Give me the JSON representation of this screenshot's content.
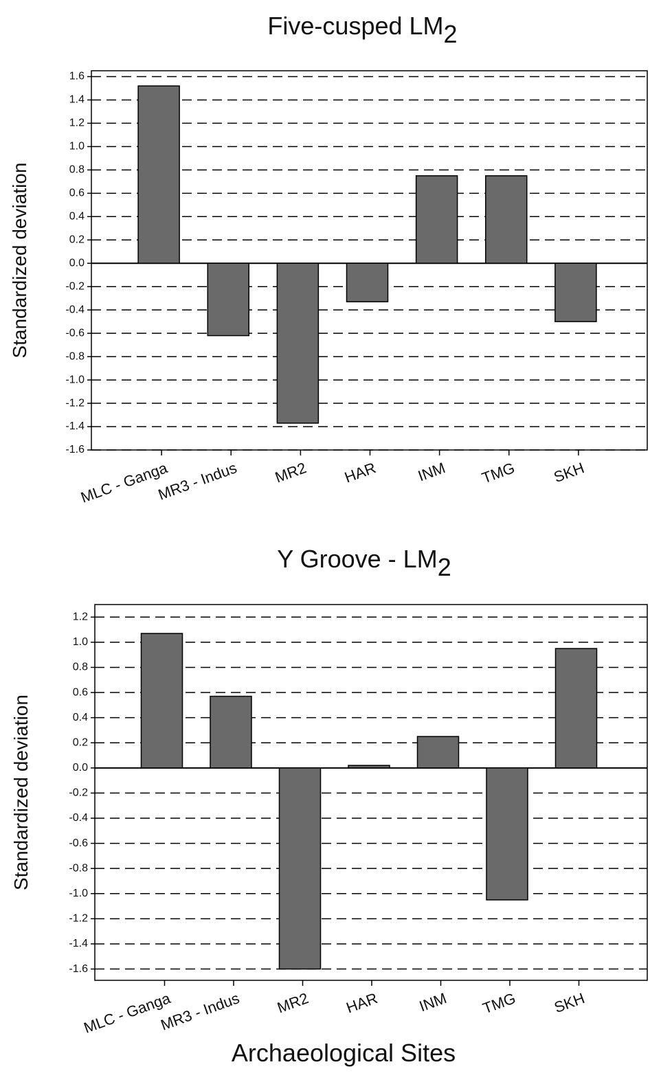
{
  "chart_data": [
    {
      "type": "bar",
      "title": "Five-cusped LM",
      "title_subscript": "2",
      "y_label": "Standardized deviation",
      "categories": [
        "MLC - Ganga",
        "MR3 - Indus",
        "MR2",
        "HAR",
        "INM",
        "TMG",
        "SKH"
      ],
      "values": [
        1.52,
        -0.62,
        -1.37,
        -0.33,
        0.75,
        0.75,
        -0.5
      ],
      "color": "#6a6a6a",
      "ylim": [
        -1.6,
        1.65
      ],
      "yticks": [
        -1.6,
        -1.4,
        -1.2,
        {
          "value": -1,
          "label": "-1.0"
        },
        -0.8,
        -0.6,
        -0.4,
        -0.2,
        {
          "value": 0,
          "label": "0.0"
        },
        0.2,
        0.4,
        0.6,
        0.8,
        {
          "value": 1,
          "label": "1.0"
        },
        1.2,
        1.4,
        1.6
      ],
      "grid": true
    },
    {
      "type": "bar",
      "title": "Y Groove - LM",
      "title_subscript": "2",
      "y_label": "Standardized deviation",
      "x_label": "Archaeological Sites",
      "categories": [
        "MLC - Ganga",
        "MR3 - Indus",
        "MR2",
        "HAR",
        "INM",
        "TMG",
        "SKH"
      ],
      "values": [
        1.07,
        0.57,
        -1.6,
        0.02,
        0.25,
        -1.05,
        0.95
      ],
      "color": "#6a6a6a",
      "ylim": [
        -1.69,
        1.3
      ],
      "yticks": [
        -1.6,
        -1.4,
        -1.2,
        {
          "value": -1,
          "label": "-1.0"
        },
        -0.8,
        -0.6,
        -0.4,
        -0.2,
        {
          "value": 0,
          "label": "0.0"
        },
        0.2,
        0.4,
        0.6,
        0.8,
        {
          "value": 1,
          "label": "1.0"
        },
        1.2
      ],
      "grid": true
    }
  ]
}
